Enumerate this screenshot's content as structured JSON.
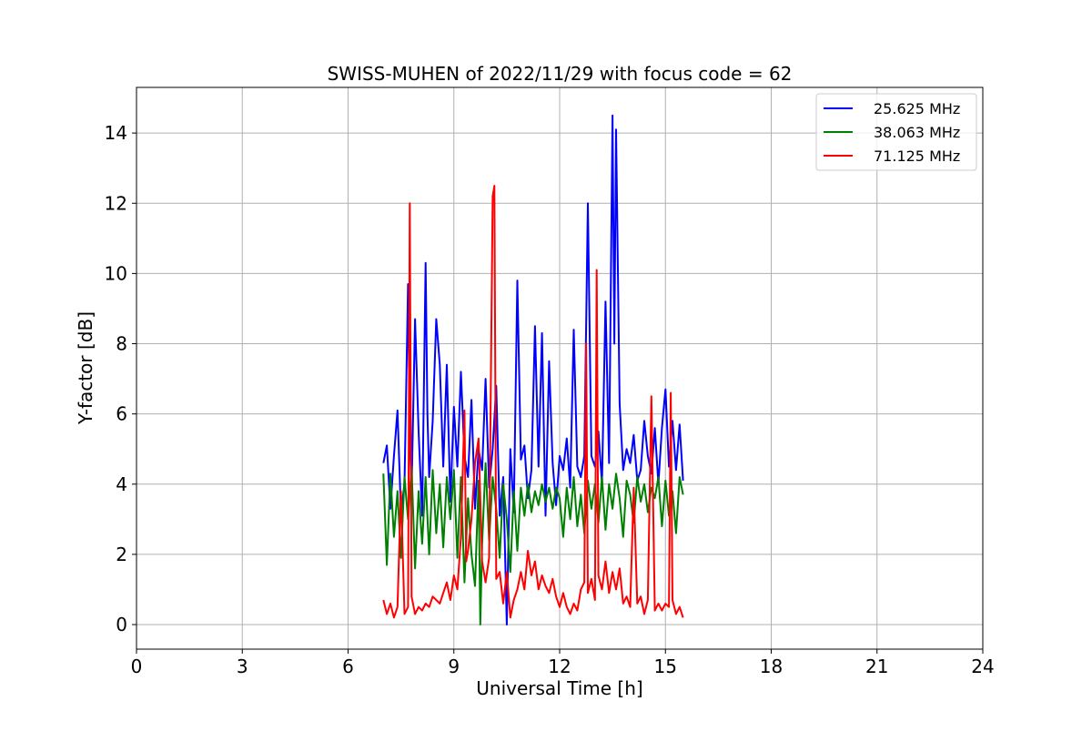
{
  "chart_data": {
    "type": "line",
    "title": "SWISS-MUHEN of 2022/11/29 with focus code = 62",
    "xlabel": "Universal Time [h]",
    "ylabel": "Y-factor [dB]",
    "xlim": [
      0,
      24
    ],
    "ylim": [
      -0.7,
      15.3
    ],
    "xticks": [
      0,
      3,
      6,
      9,
      12,
      15,
      18,
      21,
      24
    ],
    "yticks": [
      0,
      2,
      4,
      6,
      8,
      10,
      12,
      14
    ],
    "grid": true,
    "legend_position": "top-right",
    "series": [
      {
        "name": "25.625 MHz",
        "color": "#0000ff",
        "x": [
          7.0,
          7.1,
          7.2,
          7.3,
          7.4,
          7.5,
          7.6,
          7.7,
          7.75,
          7.8,
          7.9,
          8.0,
          8.1,
          8.2,
          8.25,
          8.3,
          8.4,
          8.5,
          8.6,
          8.7,
          8.8,
          8.9,
          9.0,
          9.1,
          9.2,
          9.3,
          9.4,
          9.5,
          9.6,
          9.7,
          9.8,
          9.9,
          10.0,
          10.1,
          10.2,
          10.3,
          10.4,
          10.5,
          10.6,
          10.7,
          10.8,
          10.9,
          11.0,
          11.1,
          11.2,
          11.3,
          11.4,
          11.5,
          11.6,
          11.7,
          11.8,
          11.9,
          12.0,
          12.1,
          12.2,
          12.3,
          12.4,
          12.5,
          12.6,
          12.7,
          12.8,
          12.9,
          13.0,
          13.1,
          13.2,
          13.3,
          13.4,
          13.5,
          13.55,
          13.6,
          13.7,
          13.8,
          13.9,
          14.0,
          14.1,
          14.2,
          14.3,
          14.4,
          14.5,
          14.6,
          14.7,
          14.8,
          14.9,
          15.0,
          15.1,
          15.2,
          15.3,
          15.4,
          15.5
        ],
        "values": [
          4.6,
          5.1,
          3.3,
          4.8,
          6.1,
          3.2,
          4.0,
          9.7,
          5.3,
          3.8,
          8.7,
          5.5,
          3.1,
          10.3,
          6.0,
          4.2,
          5.8,
          8.7,
          7.4,
          4.5,
          7.4,
          3.5,
          6.2,
          4.5,
          7.2,
          4.8,
          4.2,
          6.4,
          3.3,
          5.0,
          4.4,
          7.0,
          3.9,
          5.0,
          6.8,
          3.1,
          4.2,
          0.0,
          5.0,
          3.2,
          9.8,
          4.7,
          5.1,
          3.6,
          4.4,
          8.5,
          4.5,
          8.3,
          3.1,
          7.5,
          4.6,
          3.4,
          4.8,
          4.4,
          5.3,
          3.9,
          8.4,
          4.5,
          4.2,
          4.8,
          12.0,
          4.8,
          4.5,
          5.5,
          4.0,
          9.2,
          4.6,
          14.5,
          8.0,
          14.1,
          6.3,
          4.4,
          5.0,
          4.6,
          5.4,
          4.1,
          4.4,
          5.8,
          4.8,
          4.3,
          5.6,
          4.0,
          5.6,
          6.7,
          4.5,
          5.8,
          4.4,
          5.7,
          4.1
        ]
      },
      {
        "name": "38.063 MHz",
        "color": "#008000",
        "x": [
          7.0,
          7.1,
          7.2,
          7.3,
          7.4,
          7.5,
          7.6,
          7.7,
          7.8,
          7.9,
          8.0,
          8.1,
          8.2,
          8.3,
          8.4,
          8.5,
          8.6,
          8.7,
          8.8,
          8.9,
          9.0,
          9.1,
          9.2,
          9.3,
          9.4,
          9.5,
          9.6,
          9.7,
          9.75,
          9.8,
          9.9,
          10.0,
          10.1,
          10.2,
          10.3,
          10.4,
          10.5,
          10.6,
          10.7,
          10.8,
          10.9,
          11.0,
          11.1,
          11.2,
          11.3,
          11.4,
          11.5,
          11.6,
          11.7,
          11.8,
          11.9,
          12.0,
          12.1,
          12.2,
          12.3,
          12.4,
          12.5,
          12.6,
          12.7,
          12.8,
          12.9,
          13.0,
          13.1,
          13.2,
          13.3,
          13.4,
          13.5,
          13.6,
          13.7,
          13.8,
          13.9,
          14.0,
          14.1,
          14.2,
          14.3,
          14.4,
          14.5,
          14.6,
          14.7,
          14.8,
          14.9,
          15.0,
          15.1,
          15.2,
          15.3,
          15.4,
          15.5
        ],
        "values": [
          4.3,
          1.7,
          4.3,
          2.5,
          3.8,
          1.9,
          4.2,
          3.0,
          4.5,
          1.6,
          3.8,
          2.3,
          4.2,
          2.0,
          4.4,
          2.6,
          4.0,
          2.2,
          4.2,
          3.0,
          4.4,
          1.9,
          4.2,
          1.2,
          3.6,
          2.0,
          1.1,
          4.1,
          0.0,
          2.3,
          4.6,
          2.4,
          4.2,
          3.3,
          1.9,
          4.0,
          3.0,
          1.5,
          3.8,
          2.1,
          3.9,
          3.1,
          4.0,
          3.2,
          3.8,
          3.4,
          4.0,
          3.5,
          3.9,
          3.3,
          3.9,
          3.6,
          2.5,
          3.9,
          3.0,
          4.2,
          2.8,
          3.7,
          2.6,
          4.1,
          3.3,
          4.0,
          2.9,
          4.2,
          2.7,
          4.0,
          3.3,
          4.3,
          3.6,
          2.5,
          4.1,
          3.7,
          2.9,
          4.2,
          3.5,
          4.0,
          3.2,
          3.9,
          3.6,
          4.2,
          2.8,
          4.1,
          3.1,
          3.8,
          2.6,
          4.2,
          3.7
        ]
      },
      {
        "name": "71.125 MHz",
        "color": "#ff0000",
        "x": [
          7.0,
          7.1,
          7.2,
          7.3,
          7.4,
          7.5,
          7.6,
          7.7,
          7.75,
          7.8,
          7.9,
          8.0,
          8.1,
          8.2,
          8.3,
          8.4,
          8.5,
          8.6,
          8.7,
          8.8,
          8.9,
          9.0,
          9.1,
          9.2,
          9.3,
          9.35,
          9.4,
          9.5,
          9.6,
          9.7,
          9.8,
          9.9,
          10.0,
          10.1,
          10.15,
          10.2,
          10.3,
          10.4,
          10.5,
          10.6,
          10.7,
          10.8,
          10.9,
          11.0,
          11.1,
          11.2,
          11.3,
          11.4,
          11.5,
          11.6,
          11.7,
          11.8,
          11.9,
          12.0,
          12.1,
          12.2,
          12.3,
          12.4,
          12.5,
          12.6,
          12.7,
          12.75,
          12.8,
          12.9,
          13.0,
          13.05,
          13.1,
          13.2,
          13.3,
          13.4,
          13.5,
          13.6,
          13.7,
          13.8,
          13.9,
          14.0,
          14.1,
          14.2,
          14.3,
          14.4,
          14.5,
          14.6,
          14.7,
          14.8,
          14.9,
          15.0,
          15.1,
          15.15,
          15.2,
          15.3,
          15.4,
          15.5
        ],
        "values": [
          0.7,
          0.3,
          0.6,
          0.2,
          0.5,
          3.8,
          0.3,
          0.5,
          12.0,
          0.8,
          0.3,
          0.5,
          0.4,
          0.6,
          0.5,
          0.8,
          0.7,
          0.6,
          0.9,
          1.2,
          0.7,
          1.4,
          1.0,
          2.5,
          6.1,
          1.8,
          2.1,
          3.0,
          4.6,
          5.3,
          1.8,
          1.2,
          1.9,
          12.2,
          12.5,
          1.3,
          1.5,
          0.6,
          1.5,
          0.2,
          0.7,
          1.0,
          1.5,
          1.0,
          2.1,
          1.4,
          1.8,
          1.0,
          1.4,
          1.1,
          0.9,
          1.3,
          0.8,
          0.5,
          0.9,
          0.5,
          0.3,
          0.6,
          0.4,
          1.0,
          1.2,
          8.0,
          0.9,
          1.3,
          0.7,
          10.1,
          1.4,
          1.0,
          1.8,
          0.9,
          1.5,
          1.0,
          1.6,
          0.6,
          0.8,
          0.5,
          3.9,
          0.6,
          0.8,
          0.3,
          0.7,
          6.5,
          0.4,
          0.6,
          0.4,
          0.6,
          0.5,
          6.6,
          0.7,
          0.3,
          0.5,
          0.2
        ]
      }
    ]
  }
}
